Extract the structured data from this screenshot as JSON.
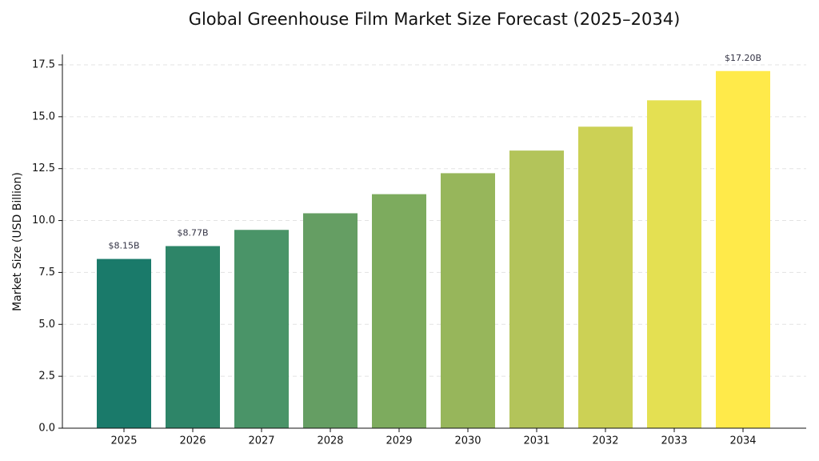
{
  "chart_data": {
    "type": "bar",
    "title": "Global Greenhouse Film Market Size Forecast (2025–2034)",
    "ylabel": "Market Size (USD Billion)",
    "categories": [
      "2025",
      "2026",
      "2027",
      "2028",
      "2029",
      "2030",
      "2031",
      "2032",
      "2033",
      "2034"
    ],
    "values": [
      8.15,
      8.77,
      9.55,
      10.35,
      11.27,
      12.28,
      13.37,
      14.52,
      15.79,
      17.2
    ],
    "value_labels": [
      "$8.15B",
      "$8.77B",
      null,
      null,
      null,
      null,
      null,
      null,
      null,
      "$17.20B"
    ],
    "colors": [
      "#1a7a6a",
      "#2e8568",
      "#4a9468",
      "#659e63",
      "#7dab5e",
      "#97b65b",
      "#b3c45a",
      "#ccd155",
      "#e4e052",
      "#ffea4a"
    ],
    "ylim": [
      0,
      18
    ],
    "yticks": [
      {
        "value": 0,
        "label": "0.0"
      },
      2.5,
      {
        "value": 5,
        "label": "5.0"
      },
      7.5,
      {
        "value": 10,
        "label": "10.0"
      },
      12.5,
      {
        "value": 15,
        "label": "15.0"
      },
      17.5
    ],
    "grid": true
  }
}
